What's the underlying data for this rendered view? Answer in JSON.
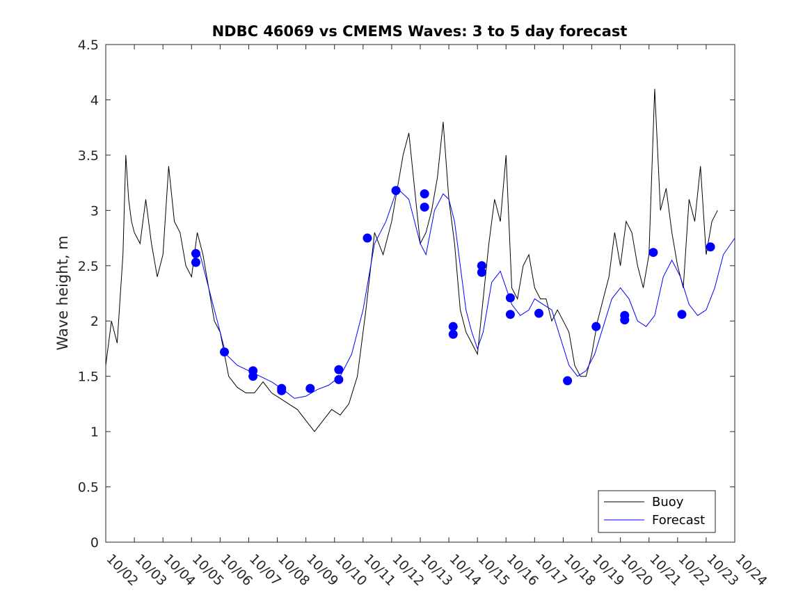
{
  "chart_data": {
    "type": "line",
    "title": "NDBC 46069 vs CMEMS Waves: 3 to 5 day forecast",
    "xlabel": "",
    "ylabel": "Wave height, m",
    "xlim": [
      0,
      22
    ],
    "ylim": [
      0,
      4.5
    ],
    "yticks": [
      0,
      0.5,
      1,
      1.5,
      2,
      2.5,
      3,
      3.5,
      4,
      4.5
    ],
    "ytick_labels": [
      "0",
      "0.5",
      "1",
      "1.5",
      "2",
      "2.5",
      "3",
      "3.5",
      "4",
      "4.5"
    ],
    "xtick_labels": [
      "10/02",
      "10/03",
      "10/04",
      "10/05",
      "10/06",
      "10/07",
      "10/08",
      "10/09",
      "10/10",
      "10/11",
      "10/12",
      "10/13",
      "10/14",
      "10/15",
      "10/16",
      "10/17",
      "10/18",
      "10/19",
      "10/20",
      "10/21",
      "10/22",
      "10/23",
      "10/24"
    ],
    "legend": {
      "position": "bottom-right",
      "entries": [
        "Buoy",
        "Forecast"
      ]
    },
    "colors": {
      "buoy": "#000000",
      "forecast": "#0000ff",
      "markers": "#0000ff"
    },
    "series": [
      {
        "name": "Buoy",
        "x": [
          0,
          0.2,
          0.4,
          0.6,
          0.7,
          0.8,
          0.9,
          1.0,
          1.2,
          1.4,
          1.6,
          1.8,
          2.0,
          2.2,
          2.4,
          2.6,
          2.8,
          3.0,
          3.2,
          3.4,
          3.6,
          3.8,
          4.0,
          4.3,
          4.6,
          4.9,
          5.2,
          5.5,
          5.8,
          6.1,
          6.4,
          6.7,
          7.0,
          7.3,
          7.6,
          7.9,
          8.2,
          8.5,
          8.8,
          9.1,
          9.4,
          9.7,
          10.0,
          10.2,
          10.4,
          10.6,
          10.8,
          11.0,
          11.2,
          11.4,
          11.6,
          11.8,
          12.0,
          12.2,
          12.4,
          12.6,
          12.8,
          13.0,
          13.2,
          13.4,
          13.6,
          13.8,
          14.0,
          14.2,
          14.4,
          14.6,
          14.8,
          15.0,
          15.2,
          15.4,
          15.6,
          15.8,
          16.0,
          16.2,
          16.4,
          16.6,
          16.8,
          17.0,
          17.2,
          17.4,
          17.6,
          17.8,
          18.0,
          18.2,
          18.4,
          18.6,
          18.8,
          19.0,
          19.2,
          19.4,
          19.6,
          19.8,
          20.0,
          20.2,
          20.4,
          20.6,
          20.8,
          21.0,
          21.2,
          21.4
        ],
        "values": [
          1.6,
          2.0,
          1.8,
          2.6,
          3.5,
          3.1,
          2.9,
          2.8,
          2.7,
          3.1,
          2.7,
          2.4,
          2.6,
          3.4,
          2.9,
          2.8,
          2.5,
          2.4,
          2.8,
          2.6,
          2.3,
          2.0,
          1.9,
          1.5,
          1.4,
          1.35,
          1.35,
          1.45,
          1.35,
          1.3,
          1.25,
          1.2,
          1.1,
          1.0,
          1.1,
          1.2,
          1.15,
          1.25,
          1.5,
          2.1,
          2.8,
          2.6,
          2.9,
          3.2,
          3.5,
          3.7,
          3.2,
          2.7,
          2.8,
          3.0,
          3.3,
          3.8,
          3.1,
          2.7,
          2.1,
          1.9,
          1.8,
          1.7,
          2.2,
          2.7,
          3.1,
          2.9,
          3.5,
          2.3,
          2.2,
          2.5,
          2.6,
          2.3,
          2.2,
          2.2,
          2.0,
          2.1,
          2.0,
          1.9,
          1.6,
          1.5,
          1.5,
          1.7,
          2.0,
          2.2,
          2.4,
          2.8,
          2.5,
          2.9,
          2.8,
          2.5,
          2.3,
          2.6,
          4.1,
          3.0,
          3.2,
          2.8,
          2.5,
          2.3,
          3.1,
          2.9,
          3.4,
          2.6,
          2.9,
          3.0
        ]
      },
      {
        "name": "Forecast",
        "x": [
          3.0,
          3.3,
          3.6,
          3.9,
          4.2,
          4.6,
          5.0,
          5.4,
          5.8,
          6.2,
          6.6,
          7.0,
          7.4,
          7.8,
          8.2,
          8.6,
          9.0,
          9.4,
          9.8,
          10.2,
          10.6,
          11.0,
          11.2,
          11.5,
          11.8,
          12.0,
          12.2,
          12.4,
          12.6,
          12.8,
          13.0,
          13.2,
          13.5,
          13.8,
          14.0,
          14.2,
          14.5,
          14.8,
          15.0,
          15.3,
          15.6,
          15.9,
          16.2,
          16.5,
          16.8,
          17.1,
          17.4,
          17.7,
          18.0,
          18.3,
          18.6,
          18.9,
          19.2,
          19.5,
          19.8,
          20.1,
          20.4,
          20.7,
          21.0,
          21.3,
          21.6,
          22.0
        ],
        "values": [
          2.6,
          2.6,
          2.3,
          2.0,
          1.7,
          1.6,
          1.55,
          1.5,
          1.45,
          1.38,
          1.3,
          1.32,
          1.38,
          1.42,
          1.5,
          1.7,
          2.1,
          2.7,
          2.9,
          3.2,
          3.1,
          2.7,
          2.6,
          3.0,
          3.15,
          3.1,
          2.9,
          2.5,
          2.1,
          1.9,
          1.75,
          1.9,
          2.35,
          2.45,
          2.3,
          2.15,
          2.05,
          2.1,
          2.2,
          2.15,
          2.1,
          1.85,
          1.6,
          1.5,
          1.55,
          1.7,
          1.95,
          2.2,
          2.3,
          2.2,
          2.0,
          1.95,
          2.05,
          2.4,
          2.55,
          2.4,
          2.15,
          2.05,
          2.1,
          2.3,
          2.6,
          2.75
        ]
      }
    ],
    "markers": {
      "x": [
        3.15,
        3.15,
        4.15,
        5.15,
        5.15,
        6.15,
        6.15,
        7.15,
        8.15,
        8.15,
        9.15,
        10.15,
        11.15,
        11.15,
        12.15,
        12.15,
        13.15,
        13.15,
        14.15,
        14.15,
        15.15,
        16.15,
        17.15,
        18.15,
        18.15,
        19.15,
        20.15,
        21.15
      ],
      "values": [
        2.61,
        2.53,
        1.72,
        1.55,
        1.5,
        1.39,
        1.37,
        1.39,
        1.56,
        1.47,
        2.75,
        3.18,
        3.15,
        3.03,
        1.95,
        1.88,
        2.5,
        2.44,
        2.21,
        2.06,
        2.07,
        1.46,
        1.95,
        2.05,
        2.01,
        2.62,
        2.06,
        2.67
      ]
    }
  }
}
